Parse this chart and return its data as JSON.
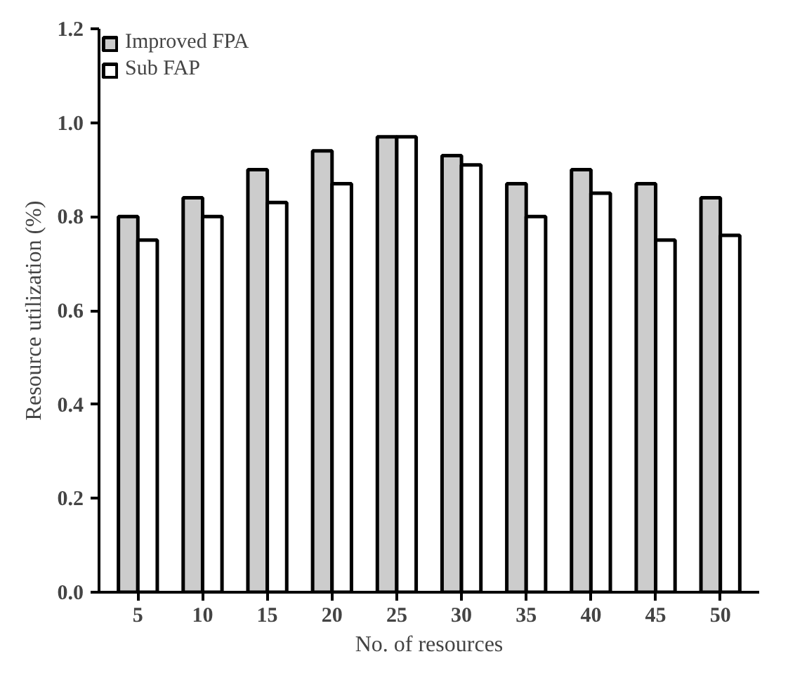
{
  "chart_data": {
    "type": "bar",
    "xlabel": "No. of resources",
    "ylabel": "Resource utilization (%)",
    "categories": [
      "5",
      "10",
      "15",
      "20",
      "25",
      "30",
      "35",
      "40",
      "45",
      "50"
    ],
    "series": [
      {
        "name": "Improved FPA",
        "color": "#cccccc",
        "values": [
          0.8,
          0.84,
          0.9,
          0.94,
          0.97,
          0.93,
          0.87,
          0.9,
          0.87,
          0.84
        ]
      },
      {
        "name": "Sub FAP",
        "color": "#ffffff",
        "values": [
          0.75,
          0.8,
          0.83,
          0.87,
          0.97,
          0.91,
          0.8,
          0.85,
          0.75,
          0.76
        ]
      }
    ],
    "ylim": [
      0,
      1.2
    ],
    "yticks": [
      {
        "value": 0,
        "label": "0.0"
      },
      {
        "value": 0.2,
        "label": "0.2"
      },
      {
        "value": 0.4,
        "label": "0.4"
      },
      {
        "value": 0.6,
        "label": "0.6"
      },
      {
        "value": 0.8,
        "label": "0.8"
      },
      {
        "value": 1.0,
        "label": "1.0"
      },
      {
        "value": 1.2,
        "label": "1.2"
      }
    ],
    "grid": false,
    "legend": "top left"
  }
}
